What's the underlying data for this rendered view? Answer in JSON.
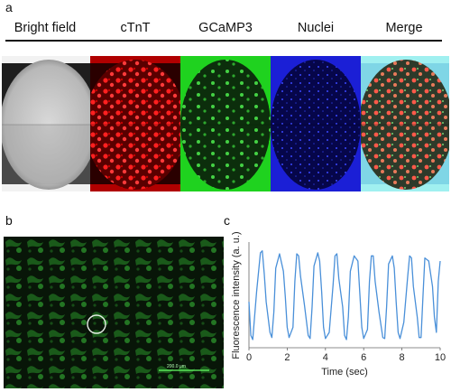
{
  "panels": {
    "a": {
      "letter": "a",
      "columns": [
        {
          "label": "Bright field",
          "color": "#bdbdbd"
        },
        {
          "label": "cTnT",
          "color": "#ff2a2a"
        },
        {
          "label": "GCaMP3",
          "color": "#22ff22"
        },
        {
          "label": "Nuclei",
          "color": "#3344ff"
        },
        {
          "label": "Merge",
          "color": "#ff6655"
        }
      ]
    },
    "b": {
      "letter": "b",
      "scalebar_label": "200.0 μm"
    },
    "c": {
      "letter": "c"
    }
  },
  "chart_data": {
    "type": "line",
    "xlabel": "Time (sec)",
    "ylabel": "Fluorescence intensity (a. u.)",
    "xlim": [
      0,
      10
    ],
    "xticks": [
      "0",
      "2",
      "4",
      "6",
      "8",
      "10"
    ],
    "y_ticks_shown": false,
    "line_color": "#4a90d9",
    "series": [
      {
        "x": [
          0.0,
          0.1,
          0.2,
          0.4,
          0.6,
          0.7,
          0.8,
          0.9,
          1.1,
          1.2,
          1.3,
          1.4,
          1.6,
          1.8,
          1.9,
          2.0,
          2.1,
          2.3,
          2.4,
          2.5,
          2.6,
          2.7,
          2.9,
          3.1,
          3.2,
          3.3,
          3.4,
          3.6,
          3.7,
          3.8,
          3.9,
          4.0,
          4.2,
          4.4,
          4.5,
          4.6,
          4.7,
          4.9,
          5.0,
          5.1,
          5.2,
          5.3,
          5.5,
          5.7,
          5.8,
          5.9,
          6.0,
          6.2,
          6.3,
          6.4,
          6.5,
          6.6,
          6.8,
          7.0,
          7.1,
          7.2,
          7.3,
          7.5,
          7.6,
          7.7,
          7.8,
          7.9,
          8.1,
          8.3,
          8.4,
          8.5,
          8.6,
          8.8,
          8.9,
          9.0,
          9.1,
          9.2,
          9.4,
          9.6,
          9.7,
          9.8,
          9.9,
          10.0
        ],
        "y": [
          0.45,
          0.12,
          0.08,
          0.55,
          0.93,
          0.95,
          0.72,
          0.45,
          0.15,
          0.1,
          0.35,
          0.78,
          0.92,
          0.75,
          0.5,
          0.2,
          0.1,
          0.2,
          0.65,
          0.92,
          0.9,
          0.7,
          0.42,
          0.12,
          0.09,
          0.4,
          0.8,
          0.93,
          0.85,
          0.55,
          0.2,
          0.09,
          0.15,
          0.62,
          0.9,
          0.92,
          0.68,
          0.4,
          0.12,
          0.08,
          0.3,
          0.75,
          0.9,
          0.85,
          0.52,
          0.2,
          0.09,
          0.18,
          0.65,
          0.9,
          0.9,
          0.65,
          0.35,
          0.1,
          0.09,
          0.4,
          0.82,
          0.9,
          0.78,
          0.45,
          0.15,
          0.09,
          0.25,
          0.7,
          0.9,
          0.88,
          0.6,
          0.3,
          0.1,
          0.1,
          0.5,
          0.88,
          0.85,
          0.6,
          0.3,
          0.15,
          0.65,
          0.85
        ]
      }
    ]
  }
}
